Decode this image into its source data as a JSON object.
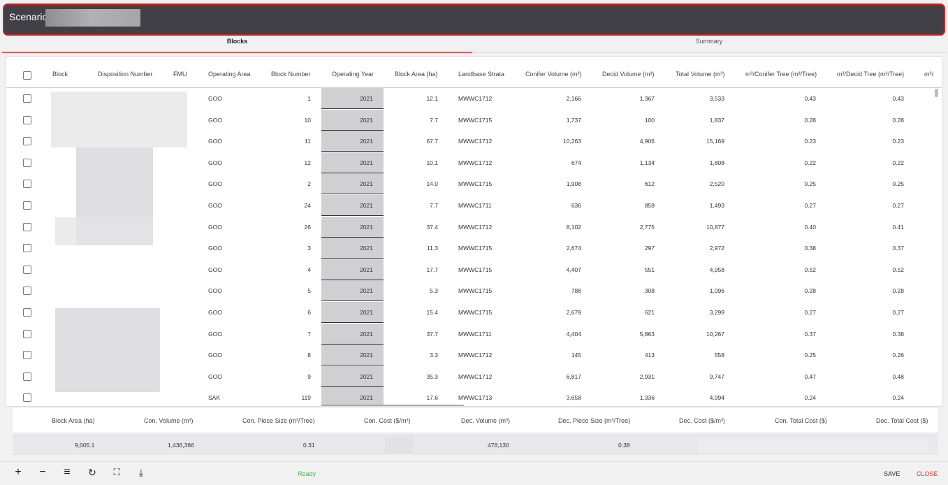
{
  "header": {
    "title": "Scenario"
  },
  "tabs": [
    {
      "label": "Blocks"
    },
    {
      "label": "Summary"
    }
  ],
  "columns": {
    "block": "Block",
    "disposition": "Disposition Number",
    "fmu": "FMU",
    "operating_area": "Operating Area",
    "block_number": "Block Number",
    "operating_year": "Operating Year",
    "block_area": "Block Area (ha)",
    "landbase_strata": "Landbase Strata",
    "conifer_volume": "Conifer Volume (m³)",
    "decid_volume": "Decid Volume (m³)",
    "total_volume": "Total Volume (m³)",
    "conifer_tree": "m³/Conifer Tree (m³/Tree)",
    "decid_tree": "m³/Decid Tree (m³/Tree)",
    "overflow": "m³/"
  },
  "rows": [
    [
      "GOO",
      "1",
      "2021",
      "12.1",
      "MWWC1712",
      "2,166",
      "1,367",
      "3,533",
      "0.43",
      "0.43"
    ],
    [
      "GOO",
      "10",
      "2021",
      "7.7",
      "MWWC1715",
      "1,737",
      "100",
      "1,837",
      "0.28",
      "0.28"
    ],
    [
      "GOO",
      "11",
      "2021",
      "67.7",
      "MWWC1712",
      "10,263",
      "4,906",
      "15,169",
      "0.23",
      "0.23"
    ],
    [
      "GOO",
      "12",
      "2021",
      "10.1",
      "MWWC1712",
      "674",
      "1,134",
      "1,808",
      "0.22",
      "0.22"
    ],
    [
      "GOO",
      "2",
      "2021",
      "14.0",
      "MWWC1715",
      "1,908",
      "612",
      "2,520",
      "0.25",
      "0.25"
    ],
    [
      "GOO",
      "24",
      "2021",
      "7.7",
      "MWWC1711",
      "636",
      "858",
      "1,493",
      "0.27",
      "0.27"
    ],
    [
      "GOO",
      "26",
      "2021",
      "37.4",
      "MWWC1712",
      "8,102",
      "2,775",
      "10,877",
      "0.40",
      "0.41"
    ],
    [
      "GOO",
      "3",
      "2021",
      "11.3",
      "MWWC1715",
      "2,674",
      "297",
      "2,972",
      "0.38",
      "0.37"
    ],
    [
      "GOO",
      "4",
      "2021",
      "17.7",
      "MWWC1715",
      "4,407",
      "551",
      "4,958",
      "0.52",
      "0.52"
    ],
    [
      "GOO",
      "5",
      "2021",
      "5.3",
      "MWWC1715",
      "788",
      "308",
      "1,096",
      "0.28",
      "0.28"
    ],
    [
      "GOO",
      "6",
      "2021",
      "15.4",
      "MWWC1715",
      "2,679",
      "621",
      "3,299",
      "0.27",
      "0.27"
    ],
    [
      "GOO",
      "7",
      "2021",
      "37.7",
      "MWWC1711",
      "4,404",
      "5,863",
      "10,267",
      "0.37",
      "0.38"
    ],
    [
      "GOO",
      "8",
      "2021",
      "3.3",
      "MWWC1712",
      "145",
      "413",
      "558",
      "0.25",
      "0.26"
    ],
    [
      "GOO",
      "9",
      "2021",
      "35.3",
      "MWWC1712",
      "6,817",
      "2,931",
      "9,747",
      "0.47",
      "0.48"
    ],
    [
      "SAK",
      "119",
      "2021",
      "17.6",
      "MWWC1713",
      "3,658",
      "1,336",
      "4,994",
      "0.24",
      "0.24"
    ]
  ],
  "summary": {
    "headers": {
      "block_area": "Block Area (ha)",
      "con_volume": "Con. Volume (m³)",
      "con_piece": "Con. Piece Size (m³/Tree)",
      "con_cost": "Con. Cost ($/m³)",
      "dec_volume": "Dec. Volume (m³)",
      "dec_piece": "Dec. Piece Size (m³/Tree)",
      "dec_cost": "Dec. Cost ($/m³)",
      "con_total": "Con. Total Cost ($)",
      "dec_total": "Dec. Total Cost ($)"
    },
    "values": {
      "block_area": "9,005.1",
      "con_volume": "1,436,366",
      "con_piece": "0.31",
      "dec_volume": "478,130",
      "dec_piece": "0.38"
    }
  },
  "toolbar": {
    "status": "Ready",
    "save": "SAVE",
    "close": "CLOSE",
    "icons": [
      "plus-icon",
      "minus-icon",
      "list-icon",
      "refresh-icon",
      "fullscreen-icon",
      "download-icon"
    ]
  },
  "colors": {
    "header_bg": "#424047",
    "accent": "#c62828",
    "ready": "#4caf50",
    "close": "#e53935",
    "opyear_bg": "#d0cfd1"
  }
}
